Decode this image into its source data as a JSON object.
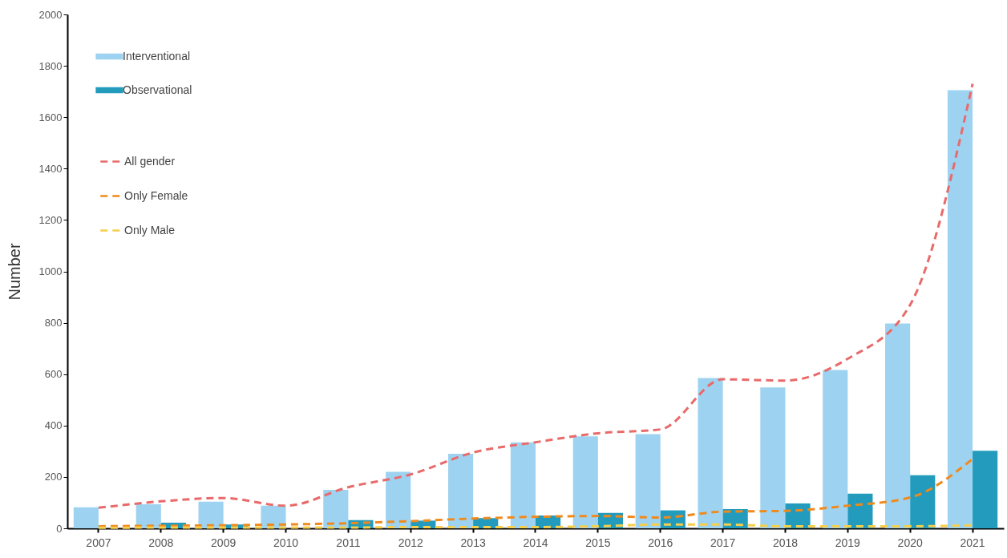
{
  "chart_data": {
    "type": "bar",
    "ylabel": "Number",
    "categories": [
      "2007",
      "2008",
      "2009",
      "2010",
      "2011",
      "2012",
      "2013",
      "2014",
      "2015",
      "2016",
      "2017",
      "2018",
      "2019",
      "2020",
      "2021"
    ],
    "series": [
      {
        "name": "Interventional",
        "color": "#9dd3f0",
        "values": [
          82,
          94,
          104,
          88,
          150,
          220,
          290,
          335,
          358,
          367,
          585,
          548,
          616,
          797,
          1705
        ]
      },
      {
        "name": "Observational",
        "color": "#229bbd",
        "values": [
          null,
          22,
          15,
          null,
          32,
          30,
          40,
          50,
          60,
          70,
          75,
          97,
          135,
          207,
          302
        ]
      },
      {
        "name": "All gender",
        "type": "line",
        "color": "#e86a6a",
        "values": [
          80,
          105,
          118,
          88,
          160,
          210,
          295,
          335,
          370,
          385,
          580,
          575,
          660,
          870,
          1730
        ]
      },
      {
        "name": "Only Female",
        "type": "line",
        "color": "#f08a1c",
        "values": [
          8,
          10,
          12,
          15,
          20,
          28,
          38,
          45,
          48,
          42,
          65,
          68,
          88,
          120,
          270
        ]
      },
      {
        "name": "Only Male",
        "type": "line",
        "color": "#f7cf4a",
        "values": [
          2,
          3,
          3,
          3,
          3,
          5,
          5,
          5,
          8,
          15,
          15,
          8,
          8,
          8,
          12
        ]
      }
    ],
    "ylim": [
      0,
      2000
    ],
    "yticks": [
      0,
      200,
      400,
      600,
      800,
      1000,
      1200,
      1400,
      1600,
      1800,
      2000
    ],
    "grid": false,
    "legend": "top left",
    "line_style": "dashed",
    "marker": "none"
  }
}
